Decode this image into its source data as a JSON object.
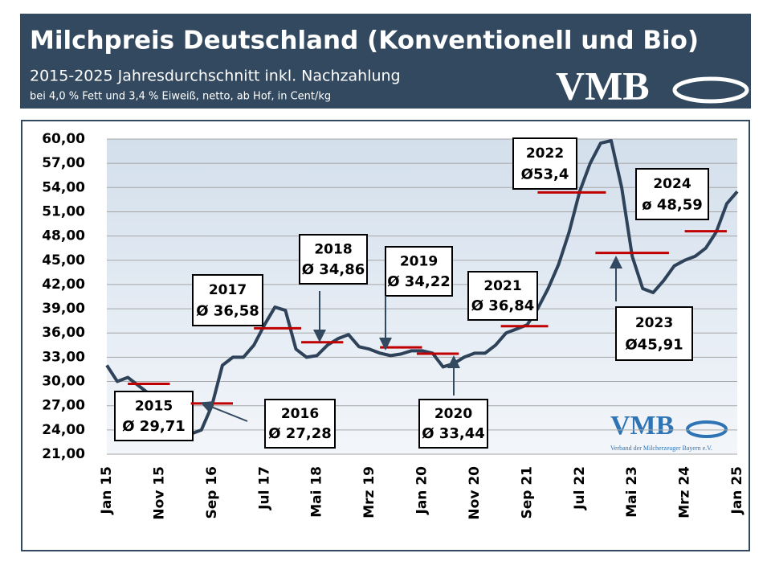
{
  "header": {
    "title": "Milchpreis Deutschland (Konventionell und Bio)",
    "subtitle": "2015-2025 Jahresdurchschnitt inkl. Nachzahlung",
    "note": "bei 4,0 % Fett und 3,4 % Eiweiß, netto, ab Hof, in Cent/kg",
    "logo": "VMB"
  },
  "chart_data": {
    "type": "line",
    "categories": [
      "Jan 15",
      null,
      null,
      null,
      null,
      "Nov 15",
      null,
      null,
      null,
      null,
      "Sep 16",
      null,
      null,
      null,
      null,
      "Jul 17",
      null,
      null,
      null,
      null,
      "Mai 18",
      null,
      null,
      null,
      null,
      "Mrz 19",
      null,
      null,
      null,
      null,
      "Jan 20",
      null,
      null,
      null,
      null,
      "Nov 20",
      null,
      null,
      null,
      null,
      "Sep 21",
      null,
      null,
      null,
      null,
      "Jul 22",
      null,
      null,
      null,
      null,
      "Mai 23",
      null,
      null,
      null,
      null,
      "Mrz 24",
      null,
      null,
      null,
      null,
      "Jan 25"
    ],
    "series": [
      {
        "color": "#2e4259",
        "values": [
          32,
          30,
          30.5,
          29.5,
          28.5,
          28.3,
          28.5,
          26.5,
          23.5,
          24,
          27,
          32,
          33,
          33,
          34.5,
          37,
          39.2,
          38.8,
          34,
          33,
          33.2,
          34.5,
          35.3,
          35.8,
          34.3,
          34,
          33.5,
          33.2,
          33.4,
          33.8,
          33.8,
          33.5,
          31.8,
          32.2,
          33,
          33.5,
          33.5,
          34.5,
          36,
          36.5,
          37,
          39,
          41.5,
          44.5,
          48.5,
          53.5,
          57,
          59.5,
          59.8,
          54,
          45.5,
          41.5,
          41,
          42.5,
          44.3,
          45,
          45.5,
          46.5,
          48.5,
          52,
          53.5
        ]
      }
    ],
    "averages": {
      "color": "#c00000",
      "years": [
        "2015",
        "2016",
        "2017",
        "2018",
        "2019",
        "2020",
        "2021",
        "2022",
        "2023",
        "2024"
      ],
      "values": [
        29.71,
        27.28,
        36.58,
        34.86,
        34.22,
        33.44,
        36.84,
        53.4,
        45.91,
        48.59
      ],
      "value_labels": [
        "Ø 29,71",
        "Ø 27,28",
        "Ø 36,58",
        "Ø 34,86",
        "Ø 34,22",
        "Ø 33,44",
        "Ø 36,84",
        "Ø53,4",
        "Ø45,91",
        "ø 48,59"
      ]
    },
    "ylim": [
      21,
      60
    ],
    "yticks": [
      {
        "value": 21,
        "label": "21,00"
      },
      {
        "value": 24,
        "label": "24,00"
      },
      {
        "value": 27,
        "label": "27,00"
      },
      {
        "value": 30,
        "label": "30,00"
      },
      {
        "value": 33,
        "label": "33,00"
      },
      {
        "value": 36,
        "label": "36,00"
      },
      {
        "value": 39,
        "label": "39,00"
      },
      {
        "value": 42,
        "label": "42,00"
      },
      {
        "value": 45,
        "label": "45,00"
      },
      {
        "value": 48,
        "label": "48,00"
      },
      {
        "value": 51,
        "label": "51,00"
      },
      {
        "value": 54,
        "label": "54,00"
      },
      {
        "value": 57,
        "label": "57,00"
      },
      {
        "value": 60,
        "label": "60,00"
      }
    ],
    "grid": true,
    "logo": {
      "text": "VMB",
      "caption": "Verband der Milcherzeuger Bayern e.V."
    }
  }
}
